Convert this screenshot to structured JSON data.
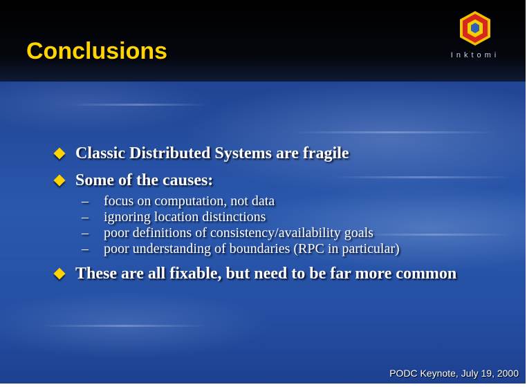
{
  "slide": {
    "title": "Conclusions",
    "logo_text": "Inktomi",
    "bullets": [
      {
        "text": "Classic Distributed Systems are fragile"
      },
      {
        "text": "Some of the causes:",
        "subs": [
          "focus on computation, not data",
          "ignoring location distinctions",
          "poor definitions of consistency/availability goals",
          "poor understanding of boundaries (RPC in particular)"
        ]
      },
      {
        "text": "These are all fixable, but need to be far more common"
      }
    ],
    "sub_marker": "–",
    "footer": "PODC Keynote, July 19, 2000"
  },
  "colors": {
    "title": "#ffd400",
    "bullet_marker": "#ffd400",
    "background": "#2a58ad",
    "header": "#000000"
  },
  "icons": {
    "logo": "inktomi-hexagon-logo-icon",
    "bullet": "diamond-bullet-icon"
  }
}
